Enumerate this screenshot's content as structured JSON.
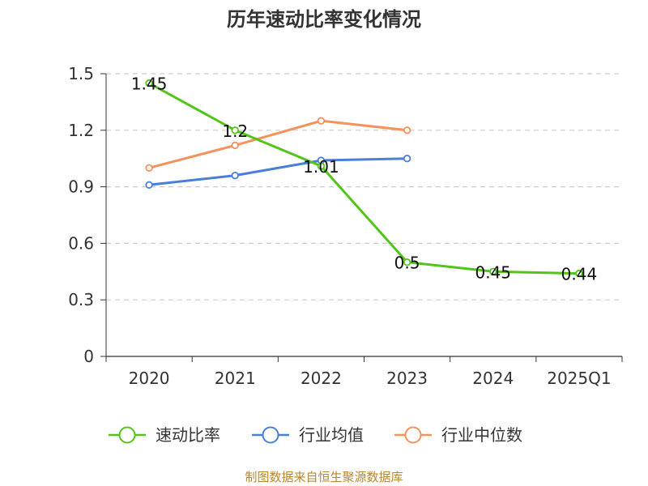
{
  "chart_data": {
    "type": "line",
    "title": "历年速动比率变化情况",
    "categories": [
      "2020",
      "2021",
      "2022",
      "2023",
      "2024",
      "2025Q1"
    ],
    "ylim": [
      0,
      1.5
    ],
    "yticks": [
      "0",
      "0.3",
      "0.6",
      "0.9",
      "1.2",
      "1.5"
    ],
    "grid": true,
    "legend_position": "bottom",
    "series": [
      {
        "name": "速动比率",
        "color": "#52c41a",
        "values": [
          1.45,
          1.2,
          1.01,
          0.5,
          0.45,
          0.44
        ],
        "labels": [
          "1.45",
          "1.2",
          "1.01",
          "0.5",
          "0.45",
          "0.44"
        ]
      },
      {
        "name": "行业均值",
        "color": "#4a7fd9",
        "values": [
          0.91,
          0.96,
          1.04,
          1.05,
          null,
          null
        ]
      },
      {
        "name": "行业中位数",
        "color": "#f5915a",
        "values": [
          1.0,
          1.12,
          1.25,
          1.2,
          null,
          null
        ]
      }
    ]
  },
  "source_note": "制图数据来自恒生聚源数据库"
}
